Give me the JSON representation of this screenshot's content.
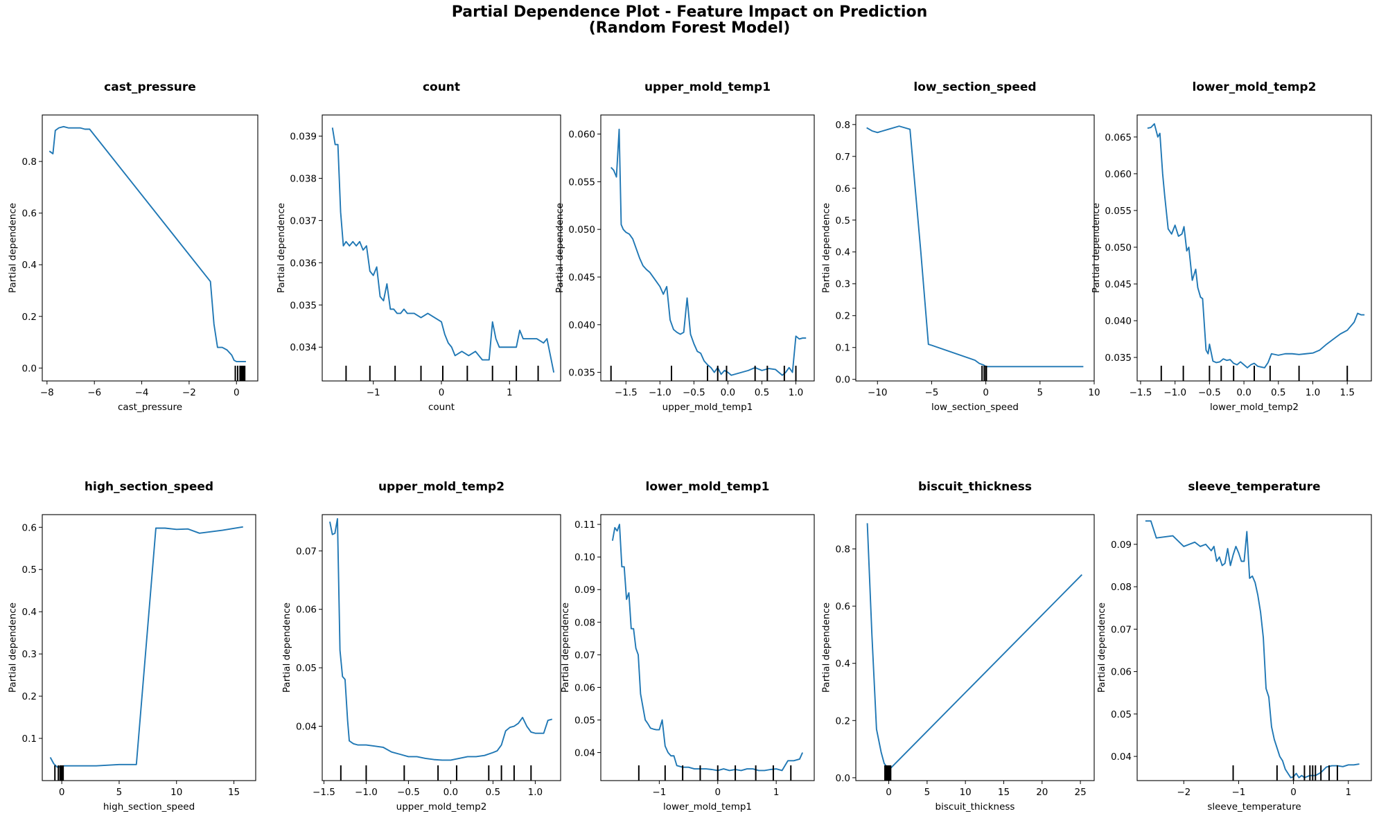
{
  "figure": {
    "title_line1": "Partial Dependence Plot - Feature Impact on Prediction",
    "title_line2": "(Random Forest Model)"
  },
  "colors": {
    "line": "#1f77b4",
    "axes": "#000000",
    "rug": "#000000"
  },
  "chart_data": [
    {
      "type": "line",
      "title": "cast_pressure",
      "xlabel": "cast_pressure",
      "ylabel": "Partial dependence",
      "xlim": [
        -8.2,
        0.9
      ],
      "ylim": [
        -0.05,
        0.98
      ],
      "xticks": [
        -8,
        -6,
        -4,
        -2,
        0
      ],
      "xtick_labels": [
        "−8",
        "−6",
        "−4",
        "−2",
        "0"
      ],
      "yticks": [
        0.0,
        0.2,
        0.4,
        0.6,
        0.8
      ],
      "ytick_labels": [
        "0.0",
        "0.2",
        "0.4",
        "0.6",
        "0.8"
      ],
      "x": [
        -7.9,
        -7.75,
        -7.65,
        -7.5,
        -7.3,
        -7.1,
        -6.9,
        -6.6,
        -6.4,
        -6.2,
        -1.1,
        -0.95,
        -0.8,
        -0.6,
        -0.4,
        -0.2,
        -0.1,
        0.0,
        0.1,
        0.2,
        0.3,
        0.4
      ],
      "y": [
        0.84,
        0.83,
        0.92,
        0.93,
        0.935,
        0.93,
        0.93,
        0.93,
        0.925,
        0.925,
        0.335,
        0.17,
        0.08,
        0.08,
        0.07,
        0.05,
        0.03,
        0.025,
        0.025,
        0.025,
        0.025,
        0.025
      ],
      "rug": [
        -0.05,
        0.05,
        0.15,
        0.2,
        0.25,
        0.3,
        0.35
      ]
    },
    {
      "type": "line",
      "title": "count",
      "xlabel": "count",
      "ylabel": "Partial dependence",
      "xlim": [
        -1.75,
        1.75
      ],
      "ylim": [
        0.0332,
        0.0395
      ],
      "xticks": [
        -1,
        0,
        1
      ],
      "xtick_labels": [
        "−1",
        "0",
        "1"
      ],
      "yticks": [
        0.034,
        0.035,
        0.036,
        0.037,
        0.038,
        0.039
      ],
      "ytick_labels": [
        "0.034",
        "0.035",
        "0.036",
        "0.037",
        "0.038",
        "0.039"
      ],
      "x": [
        -1.6,
        -1.56,
        -1.52,
        -1.48,
        -1.44,
        -1.4,
        -1.35,
        -1.3,
        -1.25,
        -1.2,
        -1.15,
        -1.1,
        -1.05,
        -1.0,
        -0.95,
        -0.9,
        -0.85,
        -0.8,
        -0.75,
        -0.7,
        -0.65,
        -0.6,
        -0.55,
        -0.5,
        -0.4,
        -0.3,
        -0.2,
        -0.1,
        0.0,
        0.05,
        0.1,
        0.15,
        0.2,
        0.3,
        0.4,
        0.5,
        0.6,
        0.7,
        0.75,
        0.8,
        0.85,
        0.9,
        1.0,
        1.1,
        1.15,
        1.2,
        1.3,
        1.4,
        1.5,
        1.55,
        1.6,
        1.65
      ],
      "y": [
        0.0392,
        0.0388,
        0.0388,
        0.0372,
        0.0364,
        0.0365,
        0.0364,
        0.0365,
        0.0364,
        0.0365,
        0.0363,
        0.0364,
        0.0358,
        0.0357,
        0.0359,
        0.0352,
        0.0351,
        0.0355,
        0.0349,
        0.0349,
        0.0348,
        0.0348,
        0.0349,
        0.0348,
        0.0348,
        0.0347,
        0.0348,
        0.0347,
        0.0346,
        0.0343,
        0.0341,
        0.034,
        0.0338,
        0.0339,
        0.0338,
        0.0339,
        0.0337,
        0.0337,
        0.0346,
        0.0342,
        0.034,
        0.034,
        0.034,
        0.034,
        0.0344,
        0.0342,
        0.0342,
        0.0342,
        0.0341,
        0.0342,
        0.0338,
        0.0334
      ],
      "rug": [
        -1.4,
        -1.05,
        -0.68,
        -0.3,
        0.02,
        0.38,
        0.75,
        1.1,
        1.42
      ]
    },
    {
      "type": "line",
      "title": "upper_mold_temp1",
      "xlabel": "upper_mold_temp1",
      "ylabel": "Partial dependence",
      "xlim": [
        -1.87,
        1.27
      ],
      "ylim": [
        0.0341,
        0.062
      ],
      "xticks": [
        -1.5,
        -1.0,
        -0.5,
        0.0,
        0.5,
        1.0
      ],
      "xtick_labels": [
        "−1.5",
        "−1.0",
        "−0.5",
        "0.0",
        "0.5",
        "1.0"
      ],
      "yticks": [
        0.035,
        0.04,
        0.045,
        0.05,
        0.055,
        0.06
      ],
      "ytick_labels": [
        "0.035",
        "0.040",
        "0.045",
        "0.050",
        "0.055",
        "0.060"
      ],
      "x": [
        -1.72,
        -1.68,
        -1.64,
        -1.6,
        -1.57,
        -1.54,
        -1.5,
        -1.45,
        -1.4,
        -1.35,
        -1.3,
        -1.25,
        -1.2,
        -1.15,
        -1.1,
        -1.05,
        -1.0,
        -0.95,
        -0.9,
        -0.85,
        -0.8,
        -0.75,
        -0.7,
        -0.65,
        -0.6,
        -0.55,
        -0.5,
        -0.45,
        -0.4,
        -0.35,
        -0.3,
        -0.25,
        -0.2,
        -0.15,
        -0.1,
        -0.05,
        0.0,
        0.05,
        0.1,
        0.2,
        0.3,
        0.4,
        0.5,
        0.6,
        0.7,
        0.8,
        0.85,
        0.9,
        0.95,
        1.0,
        1.05,
        1.1,
        1.15
      ],
      "y": [
        0.0565,
        0.0562,
        0.0555,
        0.0605,
        0.0505,
        0.05,
        0.0497,
        0.0495,
        0.049,
        0.048,
        0.047,
        0.0462,
        0.0458,
        0.0455,
        0.045,
        0.0445,
        0.044,
        0.0432,
        0.044,
        0.0405,
        0.0395,
        0.0392,
        0.039,
        0.0392,
        0.0428,
        0.039,
        0.038,
        0.0372,
        0.037,
        0.0362,
        0.0358,
        0.0355,
        0.035,
        0.0355,
        0.0348,
        0.0352,
        0.035,
        0.0347,
        0.0348,
        0.035,
        0.0352,
        0.0355,
        0.0352,
        0.0354,
        0.0353,
        0.0347,
        0.035,
        0.0355,
        0.035,
        0.0388,
        0.0385,
        0.0386,
        0.0386
      ],
      "rug": [
        -1.72,
        -0.83,
        -0.3,
        -0.15,
        -0.02,
        0.4,
        0.58,
        0.83,
        1.0
      ]
    },
    {
      "type": "line",
      "title": "low_section_speed",
      "xlabel": "low_section_speed",
      "ylabel": "Partial dependence",
      "xlim": [
        -12.0,
        10.0
      ],
      "ylim": [
        -0.005,
        0.83
      ],
      "xticks": [
        -10,
        -5,
        0,
        5,
        10
      ],
      "xtick_labels": [
        "−10",
        "−5",
        "0",
        "5",
        "10"
      ],
      "yticks": [
        0.0,
        0.1,
        0.2,
        0.3,
        0.4,
        0.5,
        0.6,
        0.7,
        0.8
      ],
      "ytick_labels": [
        "0.0",
        "0.1",
        "0.2",
        "0.3",
        "0.4",
        "0.5",
        "0.6",
        "0.7",
        "0.8"
      ],
      "x": [
        -11.0,
        -10.5,
        -10.0,
        -9.0,
        -8.0,
        -7.5,
        -7.0,
        -6.0,
        -5.3,
        -5.0,
        -1.0,
        -0.6,
        -0.2,
        0.0,
        0.3,
        5.0,
        9.0
      ],
      "y": [
        0.79,
        0.78,
        0.775,
        0.785,
        0.795,
        0.79,
        0.785,
        0.4,
        0.11,
        0.107,
        0.06,
        0.05,
        0.045,
        0.04,
        0.04,
        0.04,
        0.04
      ],
      "rug": [
        -0.35,
        -0.15,
        0.0,
        0.05
      ]
    },
    {
      "type": "line",
      "title": "lower_mold_temp2",
      "xlabel": "lower_mold_temp2",
      "ylabel": "Partial dependence",
      "xlim": [
        -1.55,
        1.85
      ],
      "ylim": [
        0.0318,
        0.068
      ],
      "xticks": [
        -1.5,
        -1.0,
        -0.5,
        0.0,
        0.5,
        1.0,
        1.5
      ],
      "xtick_labels": [
        "−1.5",
        "−1.0",
        "−0.5",
        "0.0",
        "0.5",
        "1.0",
        "1.5"
      ],
      "yticks": [
        0.035,
        0.04,
        0.045,
        0.05,
        0.055,
        0.06,
        0.065
      ],
      "ytick_labels": [
        "0.035",
        "0.040",
        "0.045",
        "0.050",
        "0.055",
        "0.060",
        "0.065"
      ],
      "x": [
        -1.4,
        -1.35,
        -1.3,
        -1.25,
        -1.22,
        -1.18,
        -1.15,
        -1.1,
        -1.05,
        -1.0,
        -0.95,
        -0.9,
        -0.87,
        -0.83,
        -0.8,
        -0.75,
        -0.7,
        -0.67,
        -0.63,
        -0.6,
        -0.55,
        -0.52,
        -0.5,
        -0.45,
        -0.4,
        -0.35,
        -0.3,
        -0.25,
        -0.2,
        -0.15,
        -0.1,
        -0.05,
        0.0,
        0.05,
        0.1,
        0.15,
        0.2,
        0.3,
        0.35,
        0.4,
        0.5,
        0.6,
        0.7,
        0.8,
        0.9,
        1.0,
        1.1,
        1.2,
        1.3,
        1.4,
        1.5,
        1.6,
        1.65,
        1.7,
        1.75
      ],
      "y": [
        0.0662,
        0.0663,
        0.0668,
        0.065,
        0.0655,
        0.06,
        0.057,
        0.0525,
        0.0518,
        0.053,
        0.0515,
        0.0518,
        0.0528,
        0.0495,
        0.05,
        0.0455,
        0.047,
        0.0445,
        0.0432,
        0.043,
        0.036,
        0.0355,
        0.0368,
        0.0345,
        0.0343,
        0.0344,
        0.0348,
        0.0346,
        0.0347,
        0.0342,
        0.034,
        0.0344,
        0.034,
        0.0336,
        0.034,
        0.0342,
        0.0338,
        0.0336,
        0.0343,
        0.0355,
        0.0353,
        0.0355,
        0.0355,
        0.0354,
        0.0355,
        0.0356,
        0.036,
        0.0368,
        0.0375,
        0.0382,
        0.0387,
        0.0398,
        0.041,
        0.0408,
        0.0408
      ],
      "rug": [
        -1.2,
        -0.88,
        -0.5,
        -0.33,
        -0.15,
        0.15,
        0.38,
        0.8,
        1.5
      ]
    },
    {
      "type": "line",
      "title": "high_section_speed",
      "xlabel": "high_section_speed",
      "ylabel": "Partial dependence",
      "xlim": [
        -1.7,
        16.9
      ],
      "ylim": [
        0.0,
        0.63
      ],
      "xticks": [
        0,
        5,
        10,
        15
      ],
      "xtick_labels": [
        "0",
        "5",
        "10",
        "15"
      ],
      "yticks": [
        0.1,
        0.2,
        0.3,
        0.4,
        0.5,
        0.6
      ],
      "ytick_labels": [
        "0.1",
        "0.2",
        "0.3",
        "0.4",
        "0.5",
        "0.6"
      ],
      "x": [
        -1.0,
        -0.7,
        -0.4,
        -0.1,
        0.2,
        1.0,
        3.0,
        5.0,
        6.5,
        8.2,
        9.0,
        10.0,
        11.0,
        12.0,
        14.0,
        15.8
      ],
      "y": [
        0.055,
        0.04,
        0.032,
        0.033,
        0.035,
        0.035,
        0.035,
        0.038,
        0.038,
        0.598,
        0.598,
        0.595,
        0.596,
        0.586,
        0.593,
        0.601
      ],
      "rug": [
        -0.6,
        -0.3,
        -0.15,
        -0.05,
        0.05,
        0.12
      ]
    },
    {
      "type": "line",
      "title": "upper_mold_temp2",
      "xlabel": "upper_mold_temp2",
      "ylabel": "Partial dependence",
      "xlim": [
        -1.52,
        1.3
      ],
      "ylim": [
        0.0307,
        0.0762
      ],
      "xticks": [
        -1.5,
        -1.0,
        -0.5,
        0.0,
        0.5,
        1.0
      ],
      "xtick_labels": [
        "−1.5",
        "−1.0",
        "−0.5",
        "0.0",
        "0.5",
        "1.0"
      ],
      "yticks": [
        0.04,
        0.05,
        0.06,
        0.07
      ],
      "ytick_labels": [
        "0.04",
        "0.05",
        "0.06",
        "0.07"
      ],
      "x": [
        -1.43,
        -1.4,
        -1.37,
        -1.34,
        -1.31,
        -1.28,
        -1.25,
        -1.22,
        -1.2,
        -1.15,
        -1.1,
        -1.0,
        -0.9,
        -0.8,
        -0.7,
        -0.6,
        -0.5,
        -0.4,
        -0.3,
        -0.2,
        -0.1,
        0.0,
        0.1,
        0.2,
        0.3,
        0.4,
        0.5,
        0.55,
        0.6,
        0.65,
        0.7,
        0.75,
        0.8,
        0.85,
        0.9,
        0.95,
        1.0,
        1.05,
        1.1,
        1.15,
        1.2
      ],
      "y": [
        0.075,
        0.0728,
        0.073,
        0.0755,
        0.053,
        0.0485,
        0.048,
        0.041,
        0.0375,
        0.037,
        0.0368,
        0.0368,
        0.0366,
        0.0364,
        0.0356,
        0.0352,
        0.0348,
        0.0348,
        0.0345,
        0.0343,
        0.0342,
        0.0342,
        0.0345,
        0.0348,
        0.0348,
        0.035,
        0.0355,
        0.0358,
        0.0368,
        0.0392,
        0.0398,
        0.04,
        0.0405,
        0.0415,
        0.04,
        0.039,
        0.0388,
        0.0388,
        0.0388,
        0.041,
        0.0412
      ],
      "rug": [
        -1.3,
        -1.0,
        -0.55,
        -0.15,
        0.07,
        0.45,
        0.6,
        0.75,
        0.95
      ]
    },
    {
      "type": "line",
      "title": "lower_mold_temp1",
      "xlabel": "lower_mold_temp1",
      "ylabel": "Partial dependence",
      "xlim": [
        -2.0,
        1.65
      ],
      "ylim": [
        0.0314,
        0.113
      ],
      "xticks": [
        -1,
        0,
        1
      ],
      "xtick_labels": [
        "−1",
        "0",
        "1"
      ],
      "yticks": [
        0.04,
        0.05,
        0.06,
        0.07,
        0.08,
        0.09,
        0.1,
        0.11
      ],
      "ytick_labels": [
        "0.04",
        "0.05",
        "0.06",
        "0.07",
        "0.08",
        "0.09",
        "0.10",
        "0.11"
      ],
      "x": [
        -1.8,
        -1.76,
        -1.72,
        -1.68,
        -1.64,
        -1.6,
        -1.56,
        -1.52,
        -1.48,
        -1.44,
        -1.4,
        -1.36,
        -1.32,
        -1.28,
        -1.24,
        -1.2,
        -1.15,
        -1.1,
        -1.05,
        -1.0,
        -0.95,
        -0.9,
        -0.85,
        -0.8,
        -0.75,
        -0.7,
        -0.6,
        -0.5,
        -0.4,
        -0.3,
        -0.2,
        -0.1,
        0.0,
        0.1,
        0.2,
        0.3,
        0.4,
        0.5,
        0.6,
        0.7,
        0.8,
        0.9,
        1.0,
        1.1,
        1.2,
        1.3,
        1.4,
        1.45
      ],
      "y": [
        0.105,
        0.109,
        0.108,
        0.11,
        0.097,
        0.097,
        0.087,
        0.089,
        0.078,
        0.078,
        0.072,
        0.07,
        0.058,
        0.054,
        0.05,
        0.049,
        0.0475,
        0.0472,
        0.047,
        0.047,
        0.05,
        0.042,
        0.04,
        0.039,
        0.039,
        0.036,
        0.0355,
        0.0355,
        0.035,
        0.035,
        0.035,
        0.0348,
        0.0345,
        0.035,
        0.0345,
        0.0348,
        0.0345,
        0.035,
        0.035,
        0.0345,
        0.0345,
        0.0348,
        0.035,
        0.0345,
        0.0375,
        0.0375,
        0.038,
        0.04
      ],
      "rug": [
        -1.35,
        -0.9,
        -0.6,
        -0.3,
        0.0,
        0.3,
        0.65,
        0.95,
        1.25
      ]
    },
    {
      "type": "line",
      "title": "biscuit_thickness",
      "xlabel": "biscuit_thickness",
      "ylabel": "Partial dependence",
      "xlim": [
        -4.3,
        26.8
      ],
      "ylim": [
        -0.01,
        0.92
      ],
      "xticks": [
        0,
        5,
        10,
        15,
        20,
        25
      ],
      "xtick_labels": [
        "0",
        "5",
        "10",
        "15",
        "20",
        "25"
      ],
      "yticks": [
        0.0,
        0.2,
        0.4,
        0.6,
        0.8
      ],
      "ytick_labels": [
        "0.0",
        "0.2",
        "0.4",
        "0.6",
        "0.8"
      ],
      "x": [
        -2.8,
        -2.2,
        -1.6,
        -1.0,
        -0.6,
        -0.3,
        0.0,
        0.3,
        25.2
      ],
      "y": [
        0.89,
        0.5,
        0.17,
        0.09,
        0.05,
        0.04,
        0.03,
        0.035,
        0.71
      ],
      "rug": [
        -0.5,
        -0.35,
        -0.2,
        -0.05,
        0.1,
        0.25
      ]
    },
    {
      "type": "line",
      "title": "sleeve_temperature",
      "xlabel": "sleeve_temperature",
      "ylabel": "Partial dependence",
      "xlim": [
        -2.85,
        1.42
      ],
      "ylim": [
        0.0343,
        0.097
      ],
      "xticks": [
        -2,
        -1,
        0,
        1
      ],
      "xtick_labels": [
        "−2",
        "−1",
        "0",
        "1"
      ],
      "yticks": [
        0.04,
        0.05,
        0.06,
        0.07,
        0.08,
        0.09
      ],
      "ytick_labels": [
        "0.04",
        "0.05",
        "0.06",
        "0.07",
        "0.08",
        "0.09"
      ],
      "x": [
        -2.7,
        -2.6,
        -2.5,
        -2.2,
        -2.0,
        -1.9,
        -1.8,
        -1.7,
        -1.6,
        -1.5,
        -1.45,
        -1.4,
        -1.35,
        -1.3,
        -1.25,
        -1.2,
        -1.15,
        -1.1,
        -1.05,
        -1.0,
        -0.95,
        -0.9,
        -0.85,
        -0.8,
        -0.75,
        -0.7,
        -0.65,
        -0.6,
        -0.55,
        -0.5,
        -0.45,
        -0.4,
        -0.35,
        -0.3,
        -0.25,
        -0.2,
        -0.15,
        -0.1,
        -0.05,
        0.0,
        0.05,
        0.1,
        0.15,
        0.2,
        0.3,
        0.4,
        0.5,
        0.6,
        0.7,
        0.8,
        0.9,
        1.0,
        1.1,
        1.2
      ],
      "y": [
        0.0955,
        0.0955,
        0.0915,
        0.092,
        0.0895,
        0.09,
        0.0905,
        0.0895,
        0.09,
        0.0885,
        0.0895,
        0.086,
        0.087,
        0.085,
        0.0855,
        0.089,
        0.085,
        0.0875,
        0.0895,
        0.088,
        0.086,
        0.086,
        0.093,
        0.082,
        0.0825,
        0.081,
        0.078,
        0.074,
        0.068,
        0.056,
        0.054,
        0.047,
        0.044,
        0.042,
        0.04,
        0.039,
        0.037,
        0.036,
        0.035,
        0.0352,
        0.036,
        0.035,
        0.0355,
        0.035,
        0.0355,
        0.0355,
        0.0362,
        0.0375,
        0.0378,
        0.0378,
        0.0376,
        0.038,
        0.038,
        0.0382
      ],
      "rug": [
        -1.1,
        -0.3,
        0.0,
        0.2,
        0.3,
        0.35,
        0.4,
        0.5,
        0.65,
        0.8
      ]
    }
  ]
}
